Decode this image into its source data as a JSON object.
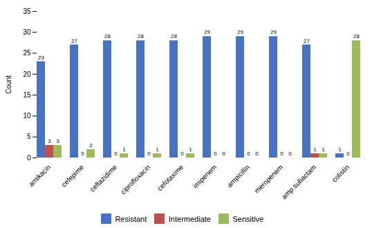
{
  "chart_data": {
    "type": "bar",
    "categories": [
      "amikacin",
      "cefepime",
      "ceftazidime",
      "ciprofloxacin",
      "cefotaxime",
      "imipenem",
      "ampicillin",
      "meropenem",
      "amp.subactam",
      "colistin"
    ],
    "series": [
      {
        "name": "Resistant",
        "color": "#4472C4",
        "values": [
          23,
          27,
          28,
          28,
          28,
          29,
          29,
          29,
          27,
          1
        ]
      },
      {
        "name": "Intermediate",
        "color": "#C0504D",
        "values": [
          3,
          0,
          0,
          0,
          0,
          0,
          0,
          0,
          1,
          0
        ]
      },
      {
        "name": "Sensitive",
        "color": "#9BBB59",
        "values": [
          3,
          2,
          1,
          1,
          1,
          0,
          0,
          0,
          1,
          28
        ]
      }
    ],
    "ylabel": "Count",
    "ylim": [
      0,
      35
    ],
    "yticks": [
      0,
      5,
      10,
      15,
      20,
      25,
      30,
      35
    ],
    "data_labels": true,
    "grid": false,
    "legend": "bottom"
  }
}
